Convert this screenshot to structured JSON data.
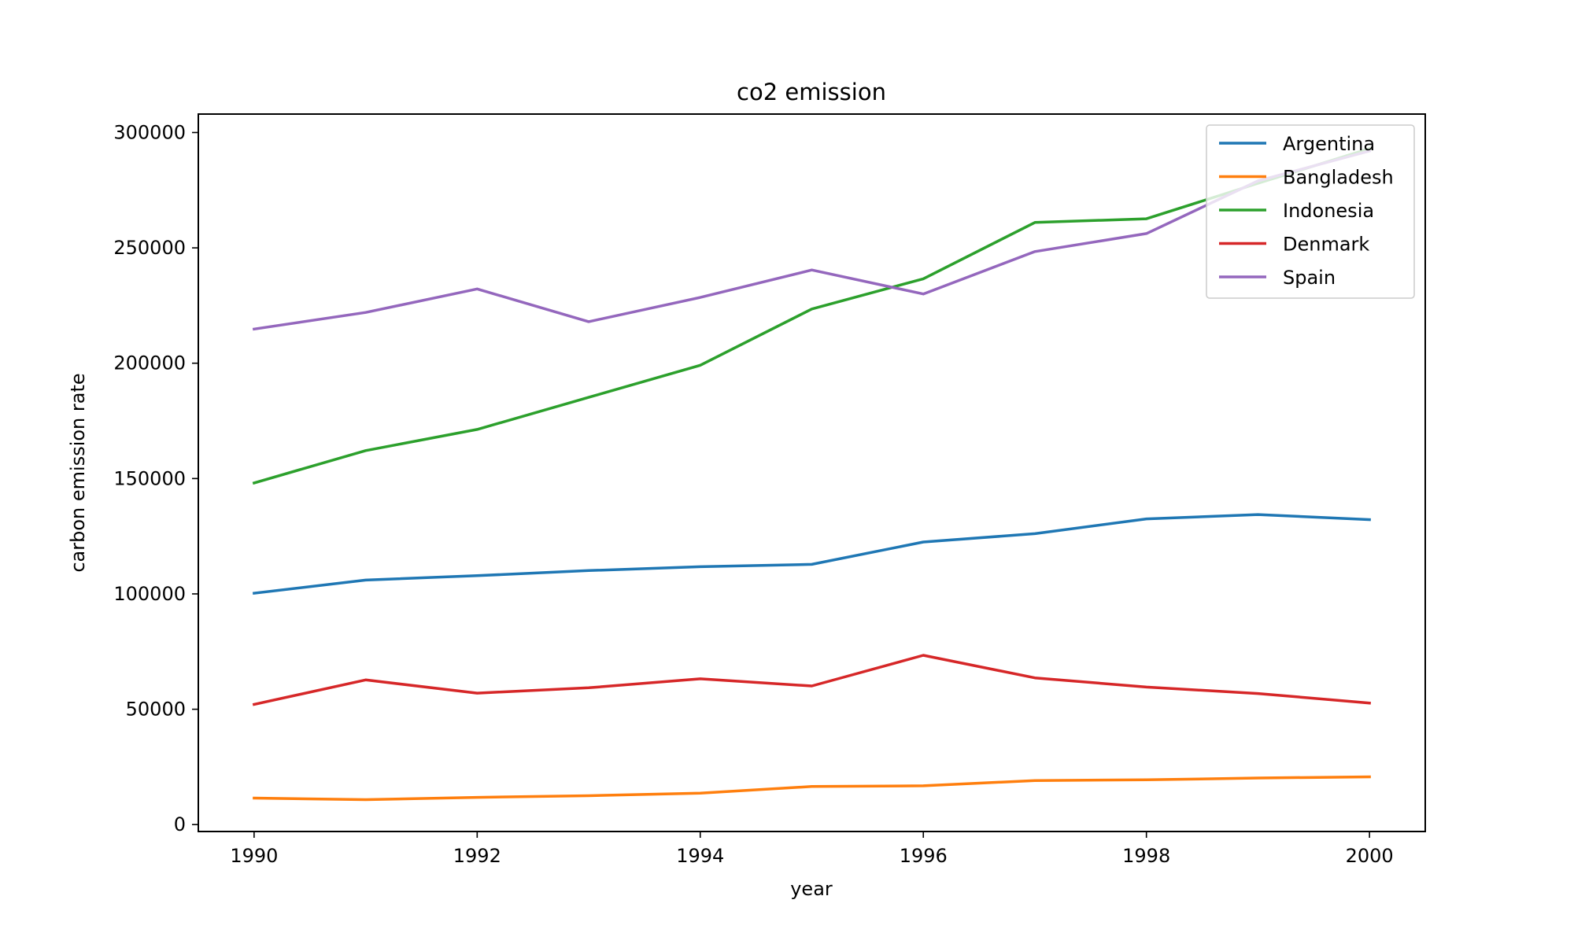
{
  "chart_data": {
    "type": "line",
    "title": "co2 emission",
    "xlabel": "year",
    "ylabel": "carbon emission rate",
    "xlim": [
      1989.5,
      2000.5
    ],
    "ylim": [
      -3000,
      308000
    ],
    "xticks": [
      1990,
      1992,
      1994,
      1996,
      1998,
      2000
    ],
    "yticks": [
      0,
      50000,
      100000,
      150000,
      200000,
      250000,
      300000
    ],
    "grid": false,
    "legend_position": "top-right",
    "x": [
      1990,
      1991,
      1992,
      1993,
      1994,
      1995,
      1996,
      1997,
      1998,
      1999,
      2000
    ],
    "series": [
      {
        "name": "Argentina",
        "color": "#1f77b4",
        "values": [
          100300,
          106000,
          107900,
          110100,
          111800,
          112800,
          122500,
          126100,
          132500,
          134400,
          132200
        ]
      },
      {
        "name": "Bangladesh",
        "color": "#ff7f0e",
        "values": [
          11500,
          10800,
          11800,
          12500,
          13600,
          16500,
          16800,
          19100,
          19400,
          20200,
          20700
        ]
      },
      {
        "name": "Indonesia",
        "color": "#2ca02c",
        "values": [
          148100,
          162100,
          171300,
          185200,
          199100,
          223500,
          236600,
          261000,
          262600,
          278000,
          293000
        ]
      },
      {
        "name": "Denmark",
        "color": "#d62728",
        "values": [
          52100,
          62700,
          57000,
          59300,
          63200,
          60100,
          73400,
          63600,
          59600,
          56800,
          52700
        ]
      },
      {
        "name": "Spain",
        "color": "#9467bd",
        "values": [
          214800,
          222000,
          232200,
          218000,
          228500,
          240400,
          230000,
          248400,
          256200,
          279000,
          292000
        ]
      }
    ]
  }
}
